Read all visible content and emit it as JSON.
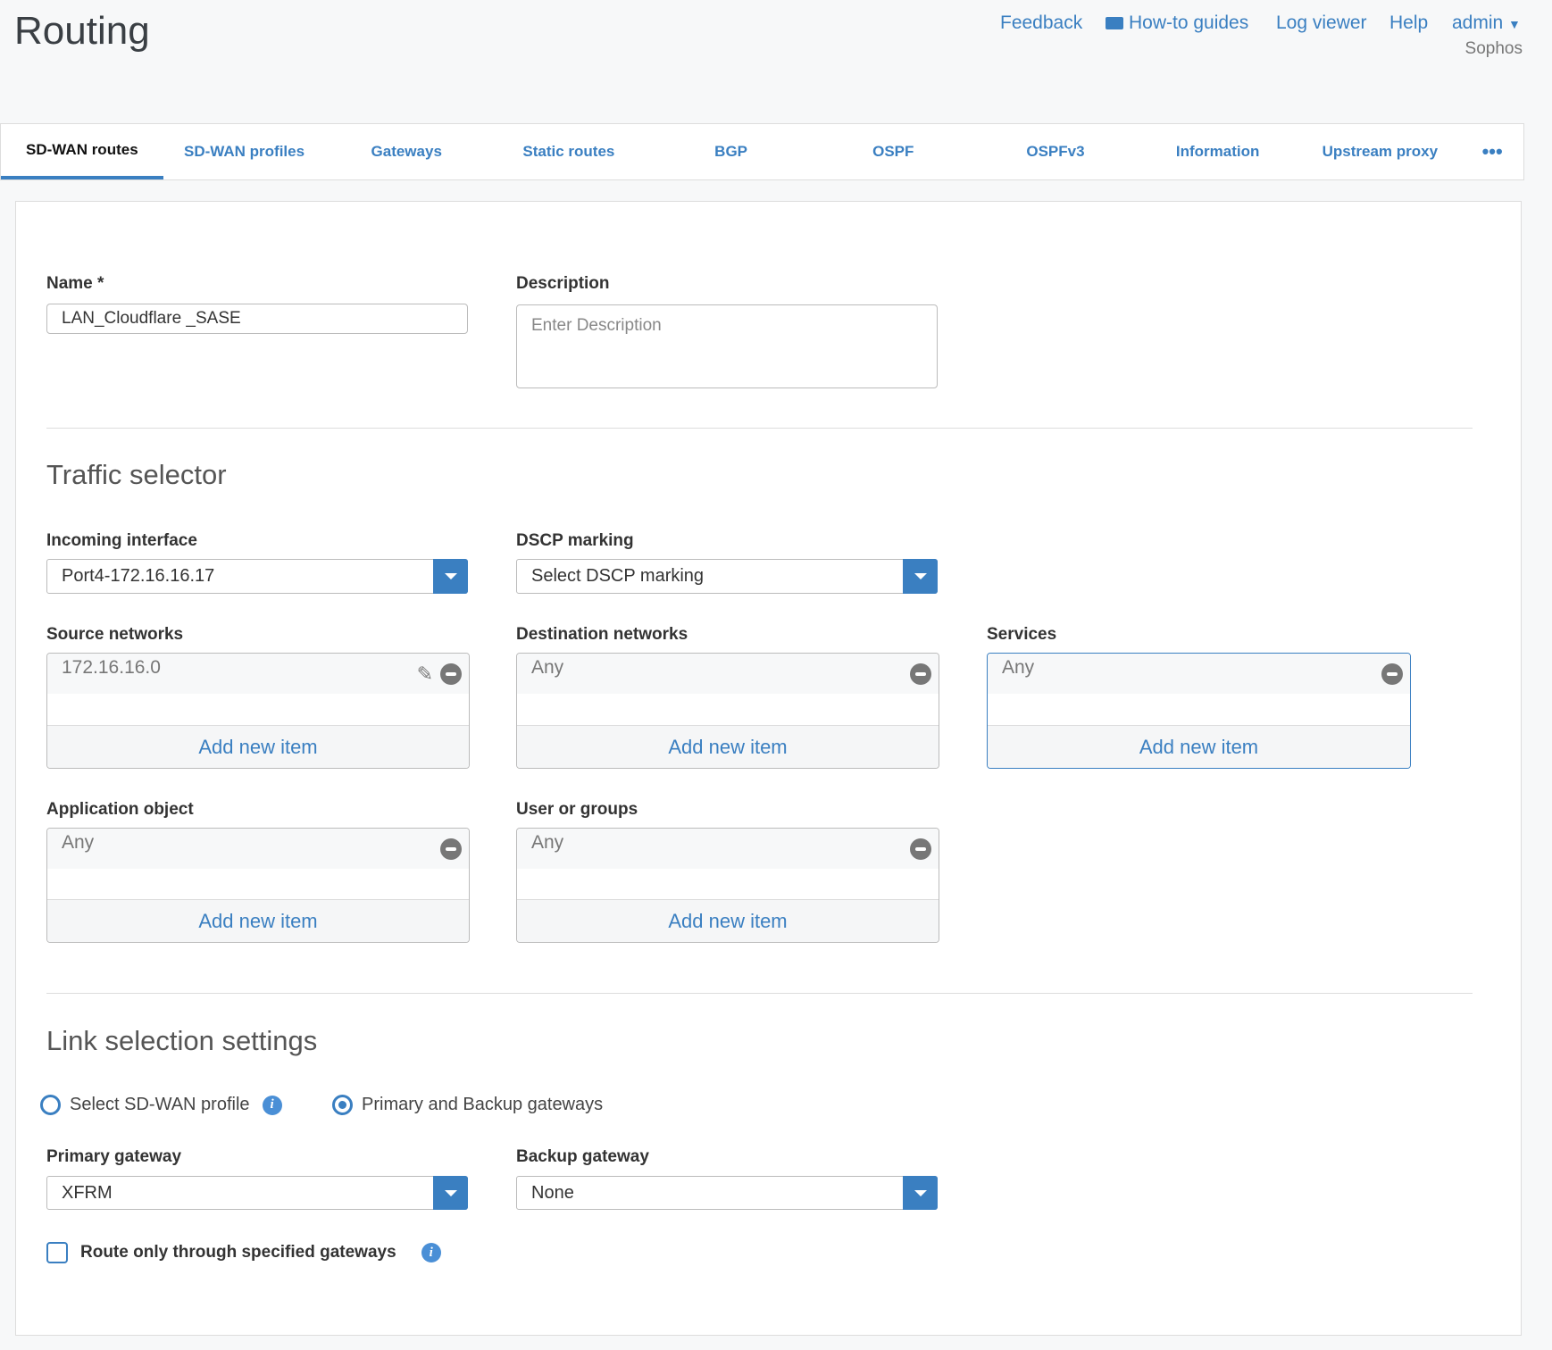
{
  "header": {
    "title": "Routing",
    "links": [
      "Feedback",
      "How-to guides",
      "Log viewer",
      "Help"
    ],
    "user": "admin",
    "org": "Sophos"
  },
  "tabs": [
    "SD-WAN routes",
    "SD-WAN profiles",
    "Gateways",
    "Static routes",
    "BGP",
    "OSPF",
    "OSPFv3",
    "Information",
    "Upstream proxy"
  ],
  "form": {
    "name_label": "Name *",
    "name_value": "LAN_Cloudflare _SASE",
    "description_label": "Description",
    "description_placeholder": "Enter Description",
    "traffic_title": "Traffic selector",
    "incoming_label": "Incoming interface",
    "incoming_value": "Port4-172.16.16.17",
    "dscp_label": "DSCP marking",
    "dscp_value": "Select DSCP marking",
    "source_label": "Source networks",
    "source_item": "172.16.16.0",
    "dest_label": "Destination networks",
    "dest_item": "Any",
    "services_label": "Services",
    "services_item": "Any",
    "app_label": "Application object",
    "app_item": "Any",
    "users_label": "User or groups",
    "users_item": "Any",
    "add_new": "Add new item",
    "link_title": "Link selection settings",
    "radio_profile": "Select SD-WAN profile",
    "radio_gateways": "Primary and Backup gateways",
    "selected_radio": "Primary and Backup gateways",
    "primary_label": "Primary gateway",
    "primary_value": "XFRM",
    "backup_label": "Backup gateway",
    "backup_value": "None",
    "route_only_label": "Route only through specified gateways",
    "route_only_checked": false
  },
  "colors": {
    "accent": "#3a7fc1"
  }
}
